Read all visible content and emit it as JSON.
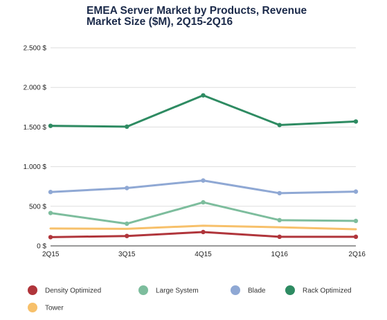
{
  "chart_data": {
    "type": "line",
    "title_lines": [
      "EMEA Server Market by Products, Revenue",
      "Market Size ($M), 2Q15-2Q16"
    ],
    "xlabel": "",
    "ylabel": "",
    "categories": [
      "2Q15",
      "3Q15",
      "4Q15",
      "1Q16",
      "2Q16"
    ],
    "ylim": [
      0,
      2500
    ],
    "yticks": [
      0,
      500,
      1000,
      1500,
      2000,
      2500
    ],
    "ytick_labels": [
      "0 $",
      "500 $",
      "1.000 $",
      "1.500 $",
      "2.000 $",
      "2.500 $"
    ],
    "grid": true,
    "legend_position": "bottom",
    "series": [
      {
        "name": "Density Optimized",
        "color": "#b0353b",
        "values": [
          110,
          125,
          175,
          115,
          115
        ]
      },
      {
        "name": "Large System",
        "color": "#7dbd9d",
        "values": [
          415,
          280,
          550,
          325,
          315
        ]
      },
      {
        "name": "Blade",
        "color": "#8fa8d4",
        "values": [
          680,
          730,
          825,
          665,
          685
        ]
      },
      {
        "name": "Rack Optimized",
        "color": "#2e8b62",
        "values": [
          1515,
          1505,
          1900,
          1525,
          1570
        ]
      },
      {
        "name": "Tower",
        "color": "#f7c06a",
        "values": [
          220,
          215,
          255,
          235,
          210
        ]
      }
    ]
  }
}
